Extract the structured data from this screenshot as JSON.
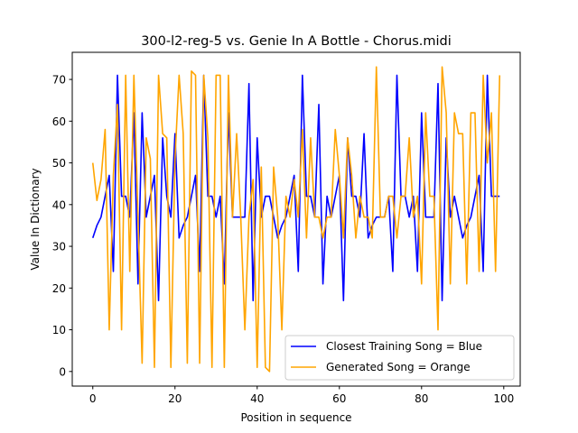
{
  "chart_data": {
    "type": "line",
    "title": "300-l2-reg-5 vs. Genie In A Bottle - Chorus.midi",
    "xlabel": "Position in sequence",
    "ylabel": "Value In Dictionary",
    "xlim": [
      -5,
      104
    ],
    "ylim": [
      -3.5,
      76.5
    ],
    "xticks": [
      0,
      20,
      40,
      60,
      80,
      100
    ],
    "yticks": [
      0,
      10,
      20,
      30,
      40,
      50,
      60,
      70
    ],
    "grid": false,
    "legend_position": "lower-right",
    "series": [
      {
        "name": "Closest Training Song = Blue",
        "color": "#0000ff",
        "x": [
          0,
          1,
          2,
          3,
          4,
          5,
          6,
          7,
          8,
          9,
          10,
          11,
          12,
          13,
          14,
          15,
          16,
          17,
          18,
          19,
          20,
          21,
          22,
          23,
          24,
          25,
          26,
          27,
          28,
          29,
          30,
          31,
          32,
          33,
          34,
          35,
          36,
          37,
          38,
          39,
          40,
          41,
          42,
          43,
          44,
          45,
          46,
          47,
          48,
          49,
          50,
          51,
          52,
          53,
          54,
          55,
          56,
          57,
          58,
          59,
          60,
          61,
          62,
          63,
          64,
          65,
          66,
          67,
          68,
          69,
          70,
          71,
          72,
          73,
          74,
          75,
          76,
          77,
          78,
          79,
          80,
          81,
          82,
          83,
          84,
          85,
          86,
          87,
          88,
          89,
          90,
          91,
          92,
          93,
          94,
          95,
          96,
          97,
          98,
          99
        ],
        "values": [
          32,
          35,
          37,
          42,
          47,
          24,
          71,
          42,
          42,
          37,
          62,
          21,
          62,
          37,
          42,
          47,
          17,
          56,
          42,
          37,
          57,
          32,
          35,
          37,
          42,
          47,
          24,
          71,
          42,
          42,
          37,
          42,
          21,
          62,
          37,
          37,
          37,
          37,
          69,
          17,
          56,
          37,
          42,
          42,
          37,
          32,
          35,
          37,
          42,
          47,
          24,
          71,
          42,
          42,
          37,
          64,
          21,
          42,
          37,
          42,
          47,
          17,
          56,
          42,
          42,
          37,
          57,
          32,
          35,
          37,
          37,
          37,
          42,
          24,
          71,
          42,
          42,
          37,
          42,
          24,
          62,
          37,
          37,
          37,
          69,
          17,
          56,
          37,
          42,
          37,
          32,
          35,
          37,
          42,
          47,
          24,
          71,
          42,
          42,
          42
        ]
      },
      {
        "name": "Generated Song = Orange",
        "color": "#ffa500",
        "x": [
          0,
          1,
          2,
          3,
          4,
          5,
          6,
          7,
          8,
          9,
          10,
          11,
          12,
          13,
          14,
          15,
          16,
          17,
          18,
          19,
          20,
          21,
          22,
          23,
          24,
          25,
          26,
          27,
          28,
          29,
          30,
          31,
          32,
          33,
          34,
          35,
          36,
          37,
          38,
          39,
          40,
          41,
          42,
          43,
          44,
          45,
          46,
          47,
          48,
          49,
          50,
          51,
          52,
          53,
          54,
          55,
          56,
          57,
          58,
          59,
          60,
          61,
          62,
          63,
          64,
          65,
          66,
          67,
          68,
          69,
          70,
          71,
          72,
          73,
          74,
          75,
          76,
          77,
          78,
          79,
          80,
          81,
          82,
          83,
          84,
          85,
          86,
          87,
          88,
          89,
          90,
          91,
          92,
          93,
          94,
          95,
          96,
          97,
          98,
          99
        ],
        "values": [
          50,
          41,
          46,
          58,
          10,
          47,
          64,
          10,
          71,
          24,
          71,
          37,
          2,
          56,
          51,
          1,
          71,
          57,
          56,
          1,
          51,
          71,
          57,
          2,
          72,
          71,
          2,
          71,
          56,
          1,
          71,
          71,
          1,
          71,
          37,
          57,
          37,
          10,
          37,
          46,
          1,
          49,
          1,
          0,
          49,
          37,
          10,
          42,
          37,
          46,
          37,
          58,
          32,
          56,
          37,
          37,
          32,
          37,
          37,
          58,
          47,
          32,
          56,
          47,
          32,
          42,
          37,
          37,
          32,
          73,
          37,
          37,
          42,
          42,
          32,
          42,
          42,
          56,
          37,
          42,
          21,
          62,
          42,
          42,
          10,
          73,
          62,
          21,
          62,
          57,
          57,
          21,
          62,
          62,
          24,
          71,
          50,
          62,
          24,
          71
        ]
      }
    ]
  }
}
